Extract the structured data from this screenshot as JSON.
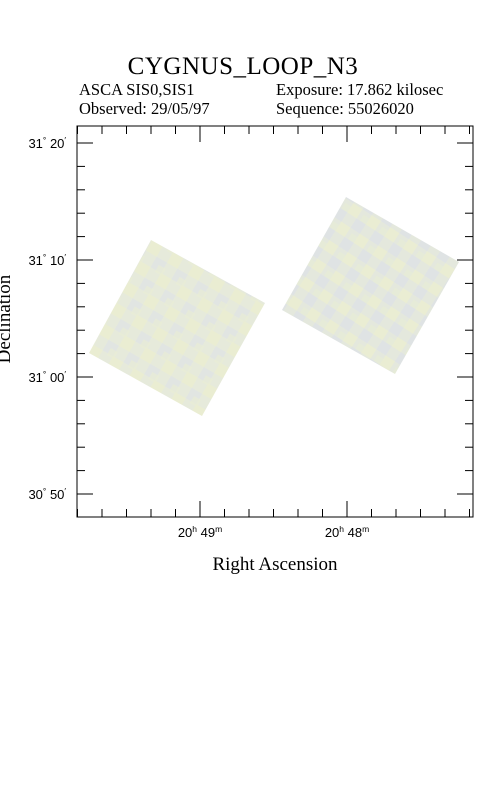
{
  "title": "CYGNUS_LOOP_N3",
  "meta": {
    "instrument": "ASCA SIS0,SIS1",
    "exposure": "Exposure: 17.862 kilosec",
    "observed": "Observed: 29/05/97",
    "sequence": "Sequence: 55026020"
  },
  "chart_data": {
    "type": "image",
    "title": "CYGNUS_LOOP_N3",
    "xlabel": "Right Ascension",
    "ylabel": "Declination",
    "x_ticks": [
      {
        "h": "20",
        "m": "49"
      },
      {
        "h": "20",
        "m": "48"
      }
    ],
    "y_ticks": [
      {
        "deg": "31",
        "min": "20"
      },
      {
        "deg": "31",
        "min": "10"
      },
      {
        "deg": "31",
        "min": "00"
      },
      {
        "deg": "30",
        "min": "50"
      }
    ],
    "image_regions": [
      {
        "name": "SIS0",
        "color": "#e6ebd9"
      },
      {
        "name": "SIS1",
        "color": "#e3e8dc"
      }
    ],
    "frame_color": "#000000"
  }
}
